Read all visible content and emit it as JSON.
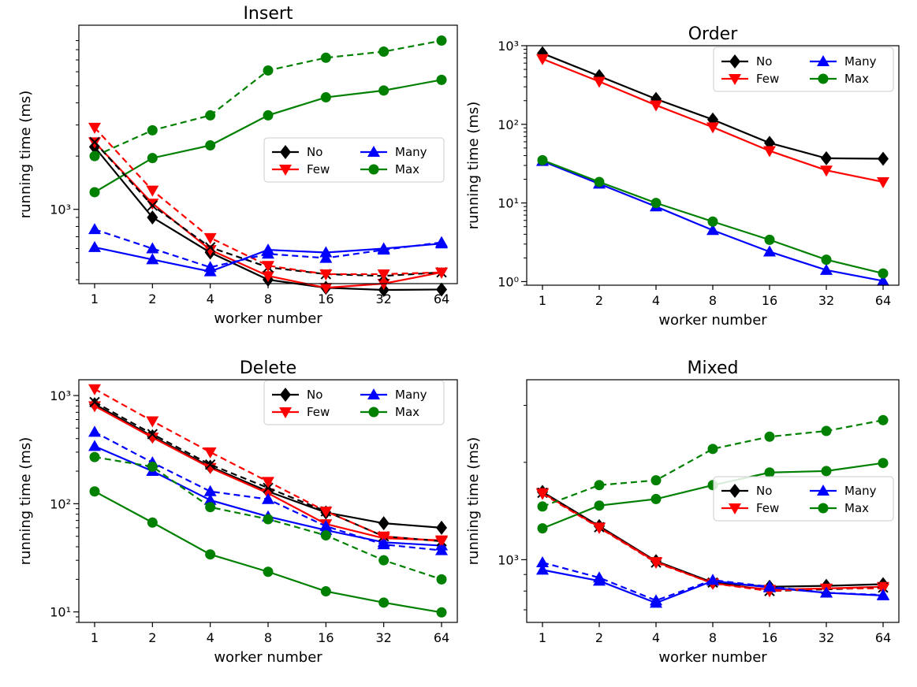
{
  "figure": {
    "xlabel": "worker number",
    "ylabel": "running time (ms)",
    "x_tick_labels": [
      "1",
      "2",
      "4",
      "8",
      "16",
      "32",
      "64"
    ],
    "legend_labels": [
      "No",
      "Few",
      "Many",
      "Max"
    ],
    "colors": {
      "No": "#000000",
      "Few": "#ff0000",
      "Many": "#0000ff",
      "Max": "#008000"
    }
  },
  "chart_data": [
    {
      "type": "line",
      "title": "Insert",
      "xlabel": "worker number",
      "ylabel": "running time (ms)",
      "yscale": "log",
      "ylim": [
        380,
        11000
      ],
      "y_ticks": [
        1000
      ],
      "categories": [
        "1",
        "2",
        "4",
        "8",
        "16",
        "32",
        "64"
      ],
      "legend": "center-right",
      "series": [
        {
          "name": "No",
          "style": "solid",
          "marker": "diamond",
          "values": [
            2250,
            900,
            570,
            400,
            360,
            350,
            352
          ]
        },
        {
          "name": "Few",
          "style": "solid",
          "marker": "triangle-down",
          "values": [
            2400,
            1080,
            590,
            420,
            360,
            380,
            440
          ]
        },
        {
          "name": "Many",
          "style": "solid",
          "marker": "triangle-up",
          "values": [
            610,
            520,
            445,
            590,
            570,
            600,
            640
          ]
        },
        {
          "name": "Max",
          "style": "solid",
          "marker": "circle",
          "values": [
            1250,
            1950,
            2300,
            3400,
            4300,
            4700,
            5400
          ]
        },
        {
          "name": "No",
          "style": "dashed",
          "marker": "x",
          "values": [
            2400,
            1050,
            610,
            470,
            430,
            420,
            440
          ]
        },
        {
          "name": "Few",
          "style": "dashed",
          "marker": "triangle-down",
          "values": [
            2900,
            1280,
            690,
            480,
            430,
            430,
            440
          ]
        },
        {
          "name": "Many",
          "style": "dashed",
          "marker": "triangle-up",
          "values": [
            770,
            600,
            470,
            560,
            530,
            590,
            650
          ]
        },
        {
          "name": "Max",
          "style": "dashed",
          "marker": "circle",
          "values": [
            2000,
            2800,
            3400,
            6100,
            7200,
            7800,
            9000
          ]
        }
      ]
    },
    {
      "type": "line",
      "title": "Order",
      "xlabel": "worker number",
      "ylabel": "running time (ms)",
      "yscale": "log",
      "ylim": [
        0.9,
        1000
      ],
      "y_ticks": [
        1,
        10,
        100,
        1000
      ],
      "categories": [
        "1",
        "2",
        "4",
        "8",
        "16",
        "32",
        "64"
      ],
      "legend": "top-right",
      "series": [
        {
          "name": "No",
          "style": "solid",
          "marker": "diamond",
          "values": [
            800,
            410,
            210,
            115,
            58,
            37,
            36.5
          ]
        },
        {
          "name": "Few",
          "style": "solid",
          "marker": "triangle-down",
          "values": [
            680,
            350,
            175,
            92,
            46,
            26,
            18.5
          ]
        },
        {
          "name": "Many",
          "style": "solid",
          "marker": "triangle-up",
          "values": [
            34,
            17.5,
            9,
            4.5,
            2.4,
            1.4,
            1.02
          ]
        },
        {
          "name": "Max",
          "style": "solid",
          "marker": "circle",
          "values": [
            35,
            18.5,
            10,
            5.8,
            3.4,
            1.9,
            1.27
          ]
        }
      ]
    },
    {
      "type": "line",
      "title": "Delete",
      "xlabel": "worker number",
      "ylabel": "running time (ms)",
      "yscale": "log",
      "ylim": [
        8,
        1400
      ],
      "y_ticks": [
        10,
        100,
        1000
      ],
      "categories": [
        "1",
        "2",
        "4",
        "8",
        "16",
        "32",
        "64"
      ],
      "legend": "top-right",
      "series": [
        {
          "name": "No",
          "style": "solid",
          "marker": "diamond",
          "values": [
            830,
            420,
            220,
            130,
            83,
            66,
            60
          ]
        },
        {
          "name": "Few",
          "style": "solid",
          "marker": "triangle-down",
          "values": [
            800,
            410,
            215,
            125,
            65,
            48,
            46
          ]
        },
        {
          "name": "Many",
          "style": "solid",
          "marker": "triangle-up",
          "values": [
            340,
            200,
            108,
            76,
            57,
            44,
            41
          ]
        },
        {
          "name": "Max",
          "style": "solid",
          "marker": "circle",
          "values": [
            130,
            67,
            34,
            23.5,
            15.5,
            12.2,
            9.9
          ]
        },
        {
          "name": "No",
          "style": "dashed",
          "marker": "x",
          "values": [
            870,
            440,
            230,
            140,
            85,
            50,
            45
          ]
        },
        {
          "name": "Few",
          "style": "dashed",
          "marker": "triangle-down",
          "values": [
            1150,
            580,
            300,
            160,
            85,
            50,
            45
          ]
        },
        {
          "name": "Many",
          "style": "dashed",
          "marker": "triangle-up",
          "values": [
            460,
            240,
            130,
            110,
            62,
            42,
            37
          ]
        },
        {
          "name": "Max",
          "style": "dashed",
          "marker": "circle",
          "values": [
            270,
            220,
            93,
            72,
            51,
            30,
            20
          ]
        }
      ]
    },
    {
      "type": "line",
      "title": "Mixed",
      "xlabel": "worker number",
      "ylabel": "running time (ms)",
      "yscale": "log",
      "ylim": [
        640,
        3600
      ],
      "y_ticks": [
        1000
      ],
      "categories": [
        "1",
        "2",
        "4",
        "8",
        "16",
        "32",
        "64"
      ],
      "legend": "center-right",
      "series": [
        {
          "name": "No",
          "style": "solid",
          "marker": "diamond",
          "values": [
            1620,
            1270,
            990,
            850,
            825,
            830,
            840
          ]
        },
        {
          "name": "Few",
          "style": "solid",
          "marker": "triangle-down",
          "values": [
            1610,
            1260,
            985,
            845,
            808,
            815,
            825
          ]
        },
        {
          "name": "Many",
          "style": "solid",
          "marker": "triangle-up",
          "values": [
            930,
            860,
            735,
            860,
            820,
            790,
            775
          ]
        },
        {
          "name": "Max",
          "style": "solid",
          "marker": "circle",
          "values": [
            1250,
            1470,
            1540,
            1700,
            1860,
            1880,
            1990
          ]
        },
        {
          "name": "No",
          "style": "dashed",
          "marker": "x",
          "values": [
            1610,
            1260,
            980,
            850,
            800,
            810,
            820
          ]
        },
        {
          "name": "Few",
          "style": "dashed",
          "marker": "triangle-down",
          "values": [
            1600,
            1255,
            980,
            845,
            800,
            815,
            815
          ]
        },
        {
          "name": "Many",
          "style": "dashed",
          "marker": "triangle-up",
          "values": [
            980,
            880,
            748,
            865,
            825,
            790,
            778
          ]
        },
        {
          "name": "Max",
          "style": "dashed",
          "marker": "circle",
          "values": [
            1460,
            1700,
            1760,
            2200,
            2400,
            2500,
            2700
          ]
        }
      ]
    }
  ]
}
